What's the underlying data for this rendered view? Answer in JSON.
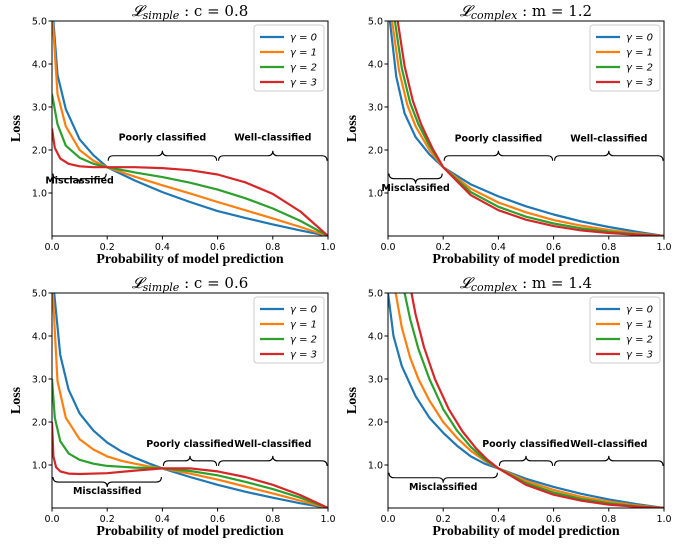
{
  "chart_data": [
    {
      "type": "line",
      "title": "𝓛simple :  c = 0.8",
      "title_main": "𝓛",
      "title_sub": "simple",
      "title_rest": " :  c = 0.8",
      "xlabel": "Probability of model prediction",
      "ylabel": "Loss",
      "xlim": [
        0,
        1
      ],
      "ylim": [
        0,
        5
      ],
      "xticks": [
        "0.0",
        "0.2",
        "0.4",
        "0.6",
        "0.8",
        "1.0"
      ],
      "yticks": [
        "1.0",
        "2.0",
        "3.0",
        "4.0",
        "5.0"
      ],
      "threshold": 0.2,
      "legend": "top-right",
      "series": [
        {
          "name": "γ = 0",
          "color": "#1f77b4",
          "x": [
            0.005,
            0.02,
            0.05,
            0.1,
            0.15,
            0.2,
            0.3,
            0.4,
            0.5,
            0.6,
            0.7,
            0.8,
            0.9,
            1.0
          ],
          "y": [
            5.0,
            3.75,
            2.95,
            2.25,
            1.88,
            1.6,
            1.29,
            1.02,
            0.79,
            0.58,
            0.42,
            0.27,
            0.13,
            0.0
          ]
        },
        {
          "name": "γ = 1",
          "color": "#ff7f0e",
          "x": [
            0.003,
            0.02,
            0.05,
            0.1,
            0.15,
            0.2,
            0.3,
            0.4,
            0.5,
            0.6,
            0.7,
            0.8,
            0.9,
            1.0
          ],
          "y": [
            5.0,
            3.3,
            2.55,
            2.0,
            1.75,
            1.6,
            1.38,
            1.18,
            0.99,
            0.79,
            0.6,
            0.41,
            0.21,
            0.0
          ]
        },
        {
          "name": "γ = 2",
          "color": "#2ca02c",
          "x": [
            0.0,
            0.02,
            0.05,
            0.1,
            0.15,
            0.2,
            0.3,
            0.4,
            0.5,
            0.6,
            0.7,
            0.8,
            0.9,
            1.0
          ],
          "y": [
            3.3,
            2.6,
            2.1,
            1.82,
            1.68,
            1.6,
            1.48,
            1.37,
            1.24,
            1.08,
            0.88,
            0.64,
            0.35,
            0.0
          ]
        },
        {
          "name": "γ = 3",
          "color": "#d62728",
          "x": [
            0.0,
            0.01,
            0.03,
            0.06,
            0.1,
            0.15,
            0.2,
            0.3,
            0.4,
            0.5,
            0.6,
            0.7,
            0.8,
            0.9,
            1.0
          ],
          "y": [
            2.5,
            2.05,
            1.8,
            1.68,
            1.62,
            1.6,
            1.6,
            1.6,
            1.58,
            1.53,
            1.43,
            1.25,
            0.98,
            0.57,
            0.0
          ]
        }
      ],
      "annotations": [
        {
          "text": "Misclassified",
          "x": 0.1,
          "y": 1.22
        },
        {
          "text": "Poorly classified",
          "x": 0.4,
          "y": 2.22
        },
        {
          "text": "Well-classified",
          "x": 0.8,
          "y": 2.22
        }
      ],
      "braces": [
        {
          "x0": 0.0,
          "x1": 0.2,
          "y": 1.45,
          "dir": "down"
        },
        {
          "x0": 0.2,
          "x1": 0.6,
          "y": 1.75,
          "dir": "up"
        },
        {
          "x0": 0.6,
          "x1": 1.0,
          "y": 1.75,
          "dir": "up"
        }
      ]
    },
    {
      "type": "line",
      "title": "𝓛complex :  m = 1.2",
      "title_main": "𝓛",
      "title_sub": "complex",
      "title_rest": " :  m = 1.2",
      "xlabel": "Probability of model prediction",
      "ylabel": "Loss",
      "xlim": [
        0,
        1
      ],
      "ylim": [
        0,
        5
      ],
      "xticks": [
        "0.0",
        "0.2",
        "0.4",
        "0.6",
        "0.8",
        "1.0"
      ],
      "yticks": [
        "1.0",
        "2.0",
        "3.0",
        "4.0",
        "5.0"
      ],
      "threshold": 0.2,
      "legend": "top-right",
      "series": [
        {
          "name": "γ = 0",
          "color": "#1f77b4",
          "x": [
            0.007,
            0.03,
            0.06,
            0.1,
            0.15,
            0.2,
            0.3,
            0.4,
            0.5,
            0.6,
            0.7,
            0.8,
            0.9,
            1.0
          ],
          "y": [
            5.0,
            3.7,
            2.85,
            2.3,
            1.9,
            1.6,
            1.2,
            0.92,
            0.69,
            0.5,
            0.34,
            0.21,
            0.1,
            0.0
          ]
        },
        {
          "name": "γ = 1",
          "color": "#ff7f0e",
          "x": [
            0.015,
            0.04,
            0.07,
            0.1,
            0.15,
            0.2,
            0.3,
            0.4,
            0.5,
            0.6,
            0.7,
            0.8,
            0.9,
            1.0
          ],
          "y": [
            5.0,
            3.85,
            3.05,
            2.55,
            2.0,
            1.6,
            1.1,
            0.78,
            0.55,
            0.37,
            0.24,
            0.14,
            0.06,
            0.0
          ]
        },
        {
          "name": "γ = 2",
          "color": "#2ca02c",
          "x": [
            0.025,
            0.05,
            0.08,
            0.11,
            0.15,
            0.2,
            0.3,
            0.4,
            0.5,
            0.6,
            0.7,
            0.8,
            0.9,
            1.0
          ],
          "y": [
            5.0,
            3.9,
            3.1,
            2.6,
            2.1,
            1.6,
            1.02,
            0.68,
            0.45,
            0.29,
            0.18,
            0.1,
            0.04,
            0.0
          ]
        },
        {
          "name": "γ = 3",
          "color": "#d62728",
          "x": [
            0.035,
            0.06,
            0.09,
            0.12,
            0.16,
            0.2,
            0.3,
            0.4,
            0.5,
            0.6,
            0.7,
            0.8,
            0.9,
            1.0
          ],
          "y": [
            5.0,
            3.95,
            3.15,
            2.6,
            2.05,
            1.6,
            0.95,
            0.6,
            0.38,
            0.23,
            0.13,
            0.07,
            0.03,
            0.0
          ]
        }
      ],
      "annotations": [
        {
          "text": "Misclassified",
          "x": 0.1,
          "y": 1.05
        },
        {
          "text": "Poorly classified",
          "x": 0.4,
          "y": 2.2
        },
        {
          "text": "Well-classified",
          "x": 0.8,
          "y": 2.2
        }
      ],
      "braces": [
        {
          "x0": 0.0,
          "x1": 0.2,
          "y": 1.45,
          "dir": "down"
        },
        {
          "x0": 0.2,
          "x1": 0.6,
          "y": 1.75,
          "dir": "up"
        },
        {
          "x0": 0.6,
          "x1": 1.0,
          "y": 1.75,
          "dir": "up"
        }
      ]
    },
    {
      "type": "line",
      "title": "𝓛simple :  c = 0.6",
      "title_main": "𝓛",
      "title_sub": "simple",
      "title_rest": " :  c = 0.6",
      "xlabel": "Probability of model prediction",
      "ylabel": "Loss",
      "xlim": [
        0,
        1
      ],
      "ylim": [
        0,
        5
      ],
      "xticks": [
        "0.0",
        "0.2",
        "0.4",
        "0.6",
        "0.8",
        "1.0"
      ],
      "yticks": [
        "1.0",
        "2.0",
        "3.0",
        "4.0",
        "5.0"
      ],
      "threshold": 0.4,
      "legend": "top-right",
      "series": [
        {
          "name": "γ = 0",
          "color": "#1f77b4",
          "x": [
            0.008,
            0.03,
            0.06,
            0.1,
            0.15,
            0.2,
            0.25,
            0.3,
            0.35,
            0.4,
            0.5,
            0.6,
            0.7,
            0.8,
            0.9,
            1.0
          ],
          "y": [
            5.0,
            3.55,
            2.75,
            2.2,
            1.8,
            1.52,
            1.32,
            1.17,
            1.04,
            0.92,
            0.72,
            0.54,
            0.38,
            0.24,
            0.11,
            0.0
          ]
        },
        {
          "name": "γ = 1",
          "color": "#ff7f0e",
          "x": [
            0.003,
            0.02,
            0.05,
            0.1,
            0.15,
            0.2,
            0.25,
            0.3,
            0.35,
            0.4,
            0.5,
            0.6,
            0.7,
            0.8,
            0.9,
            1.0
          ],
          "y": [
            5.0,
            2.95,
            2.1,
            1.6,
            1.36,
            1.2,
            1.1,
            1.03,
            0.97,
            0.92,
            0.8,
            0.66,
            0.5,
            0.34,
            0.17,
            0.0
          ]
        },
        {
          "name": "γ = 2",
          "color": "#2ca02c",
          "x": [
            0.0,
            0.01,
            0.03,
            0.06,
            0.1,
            0.15,
            0.2,
            0.3,
            0.4,
            0.5,
            0.6,
            0.7,
            0.8,
            0.9,
            1.0
          ],
          "y": [
            3.0,
            2.1,
            1.55,
            1.27,
            1.12,
            1.03,
            0.98,
            0.94,
            0.92,
            0.86,
            0.76,
            0.61,
            0.44,
            0.24,
            0.0
          ]
        },
        {
          "name": "γ = 3",
          "color": "#d62728",
          "x": [
            0.0,
            0.005,
            0.015,
            0.03,
            0.06,
            0.1,
            0.2,
            0.3,
            0.4,
            0.5,
            0.6,
            0.7,
            0.8,
            0.9,
            1.0
          ],
          "y": [
            2.0,
            1.2,
            0.95,
            0.85,
            0.8,
            0.79,
            0.81,
            0.87,
            0.92,
            0.92,
            0.85,
            0.72,
            0.54,
            0.3,
            0.0
          ]
        }
      ],
      "annotations": [
        {
          "text": "Misclassified",
          "x": 0.2,
          "y": 0.33
        },
        {
          "text": "Poorly classified",
          "x": 0.5,
          "y": 1.42
        },
        {
          "text": "Well-classified",
          "x": 0.8,
          "y": 1.42
        }
      ],
      "braces": [
        {
          "x0": 0.0,
          "x1": 0.4,
          "y": 0.72,
          "dir": "down"
        },
        {
          "x0": 0.4,
          "x1": 0.6,
          "y": 0.98,
          "dir": "up"
        },
        {
          "x0": 0.6,
          "x1": 1.0,
          "y": 0.98,
          "dir": "up"
        }
      ]
    },
    {
      "type": "line",
      "title": "𝓛complex :  m = 1.4",
      "title_main": "𝓛",
      "title_sub": "complex",
      "title_rest": " :  m = 1.4",
      "xlabel": "Probability of model prediction",
      "ylabel": "Loss",
      "xlim": [
        0,
        1
      ],
      "ylim": [
        0,
        5
      ],
      "xticks": [
        "0.0",
        "0.2",
        "0.4",
        "0.6",
        "0.8",
        "1.0"
      ],
      "yticks": [
        "1.0",
        "2.0",
        "3.0",
        "4.0",
        "5.0"
      ],
      "threshold": 0.4,
      "legend": "top-right",
      "series": [
        {
          "name": "γ = 0",
          "color": "#1f77b4",
          "x": [
            0.0,
            0.02,
            0.05,
            0.1,
            0.15,
            0.2,
            0.25,
            0.3,
            0.35,
            0.4,
            0.5,
            0.6,
            0.7,
            0.8,
            0.9,
            1.0
          ],
          "y": [
            5.0,
            4.0,
            3.3,
            2.6,
            2.1,
            1.75,
            1.45,
            1.2,
            1.03,
            0.92,
            0.68,
            0.49,
            0.33,
            0.2,
            0.09,
            0.0
          ]
        },
        {
          "name": "γ = 1",
          "color": "#ff7f0e",
          "x": [
            0.028,
            0.05,
            0.08,
            0.11,
            0.15,
            0.2,
            0.25,
            0.3,
            0.35,
            0.4,
            0.5,
            0.6,
            0.7,
            0.8,
            0.9,
            1.0
          ],
          "y": [
            5.0,
            4.2,
            3.5,
            3.0,
            2.5,
            2.0,
            1.63,
            1.33,
            1.1,
            0.92,
            0.63,
            0.42,
            0.26,
            0.15,
            0.06,
            0.0
          ]
        },
        {
          "name": "γ = 2",
          "color": "#2ca02c",
          "x": [
            0.06,
            0.08,
            0.11,
            0.15,
            0.2,
            0.25,
            0.3,
            0.35,
            0.4,
            0.5,
            0.6,
            0.7,
            0.8,
            0.9,
            1.0
          ],
          "y": [
            5.0,
            4.4,
            3.7,
            3.0,
            2.3,
            1.8,
            1.42,
            1.13,
            0.92,
            0.58,
            0.36,
            0.21,
            0.11,
            0.04,
            0.0
          ]
        },
        {
          "name": "γ = 3",
          "color": "#d62728",
          "x": [
            0.085,
            0.1,
            0.13,
            0.17,
            0.22,
            0.27,
            0.32,
            0.36,
            0.4,
            0.5,
            0.6,
            0.7,
            0.8,
            0.9,
            1.0
          ],
          "y": [
            5.0,
            4.5,
            3.75,
            3.0,
            2.3,
            1.78,
            1.38,
            1.12,
            0.92,
            0.54,
            0.31,
            0.17,
            0.08,
            0.03,
            0.0
          ]
        }
      ],
      "annotations": [
        {
          "text": "Misclassified",
          "x": 0.2,
          "y": 0.42
        },
        {
          "text": "Poorly classified",
          "x": 0.5,
          "y": 1.42
        },
        {
          "text": "Well-classified",
          "x": 0.8,
          "y": 1.42
        }
      ],
      "braces": [
        {
          "x0": 0.0,
          "x1": 0.4,
          "y": 0.82,
          "dir": "down"
        },
        {
          "x0": 0.4,
          "x1": 0.6,
          "y": 0.98,
          "dir": "up"
        },
        {
          "x0": 0.6,
          "x1": 1.0,
          "y": 0.98,
          "dir": "up"
        }
      ]
    }
  ]
}
